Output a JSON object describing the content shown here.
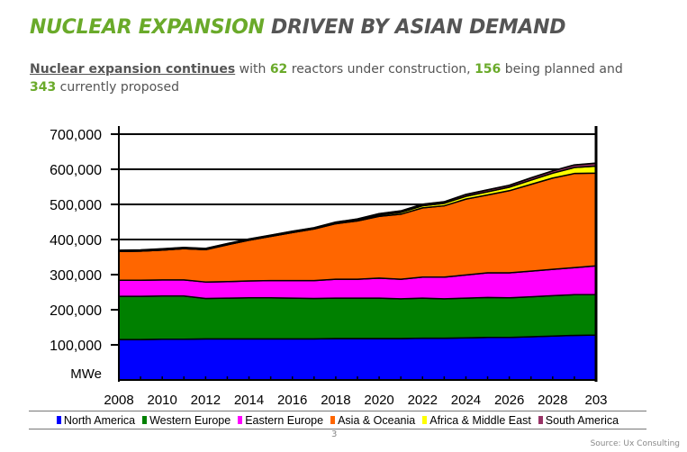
{
  "title": {
    "highlight": "NUCLEAR EXPANSION",
    "rest": " DRIVEN BY ASIAN DEMAND"
  },
  "subtitle": {
    "lead": "Nuclear expansion continues",
    "t1": " with ",
    "n1": "62",
    "t2": " reactors under construction, ",
    "n2": "156",
    "t3": " being planned and ",
    "n3": "343",
    "t4": " currently proposed"
  },
  "page_number": "3",
  "source": "Source: Ux Consulting",
  "chart_data": {
    "type": "area",
    "stacked": true,
    "title": "",
    "ylabel": "MWe",
    "ylim": [
      0,
      700000
    ],
    "yticks": [
      100000,
      200000,
      300000,
      400000,
      500000,
      600000,
      700000
    ],
    "ytick_labels": [
      "100,000",
      "200,000",
      "300,000",
      "400,000",
      "500,000",
      "600,000",
      "700,000"
    ],
    "x": [
      2008,
      2009,
      2010,
      2011,
      2012,
      2013,
      2014,
      2015,
      2016,
      2017,
      2018,
      2019,
      2020,
      2021,
      2022,
      2023,
      2024,
      2025,
      2026,
      2027,
      2028,
      2029,
      2030
    ],
    "xtick_labels": [
      "2008",
      "2010",
      "2012",
      "2014",
      "2016",
      "2018",
      "2020",
      "2022",
      "2024",
      "2026",
      "2028",
      "203"
    ],
    "grid": true,
    "legend_position": "bottom",
    "series": [
      {
        "name": "North America",
        "color": "#0000ff",
        "values": [
          115000,
          115000,
          116000,
          116000,
          117000,
          117000,
          117000,
          117000,
          117000,
          117000,
          118000,
          118000,
          118000,
          118000,
          119000,
          119000,
          120000,
          121000,
          121000,
          123000,
          125000,
          127000,
          128000
        ]
      },
      {
        "name": "Western Europe",
        "color": "#008000",
        "values": [
          123000,
          123000,
          123000,
          123000,
          115000,
          116000,
          117000,
          117000,
          116000,
          115000,
          115000,
          115000,
          115000,
          113000,
          114000,
          112000,
          113000,
          114000,
          113000,
          114000,
          115000,
          116000,
          115000
        ]
      },
      {
        "name": "Eastern Europe",
        "color": "#ff00ff",
        "values": [
          46000,
          46000,
          46000,
          46000,
          47000,
          47000,
          48000,
          49000,
          50000,
          51000,
          54000,
          54000,
          57000,
          56000,
          60000,
          62000,
          66000,
          70000,
          71000,
          73000,
          75000,
          77000,
          82000
        ]
      },
      {
        "name": "Asia & Oceania",
        "color": "#ff6600",
        "values": [
          82000,
          83000,
          85000,
          89000,
          92000,
          105000,
          116000,
          126000,
          137000,
          147000,
          158000,
          166000,
          176000,
          185000,
          197000,
          203000,
          216000,
          222000,
          234000,
          247000,
          260000,
          268000,
          264000
        ]
      },
      {
        "name": "Africa & Middle East",
        "color": "#ffff00",
        "values": [
          0,
          0,
          0,
          0,
          0,
          0,
          0,
          0,
          0,
          0,
          1000,
          2000,
          4000,
          5000,
          6000,
          7000,
          8000,
          9000,
          10000,
          12000,
          14000,
          17000,
          20000
        ]
      },
      {
        "name": "South America",
        "color": "#993366",
        "values": [
          3000,
          3000,
          3000,
          3000,
          3000,
          3000,
          3000,
          3000,
          3000,
          3000,
          3000,
          3000,
          3000,
          4000,
          4000,
          4000,
          5000,
          5000,
          5000,
          6000,
          6000,
          7000,
          8000
        ]
      }
    ]
  }
}
